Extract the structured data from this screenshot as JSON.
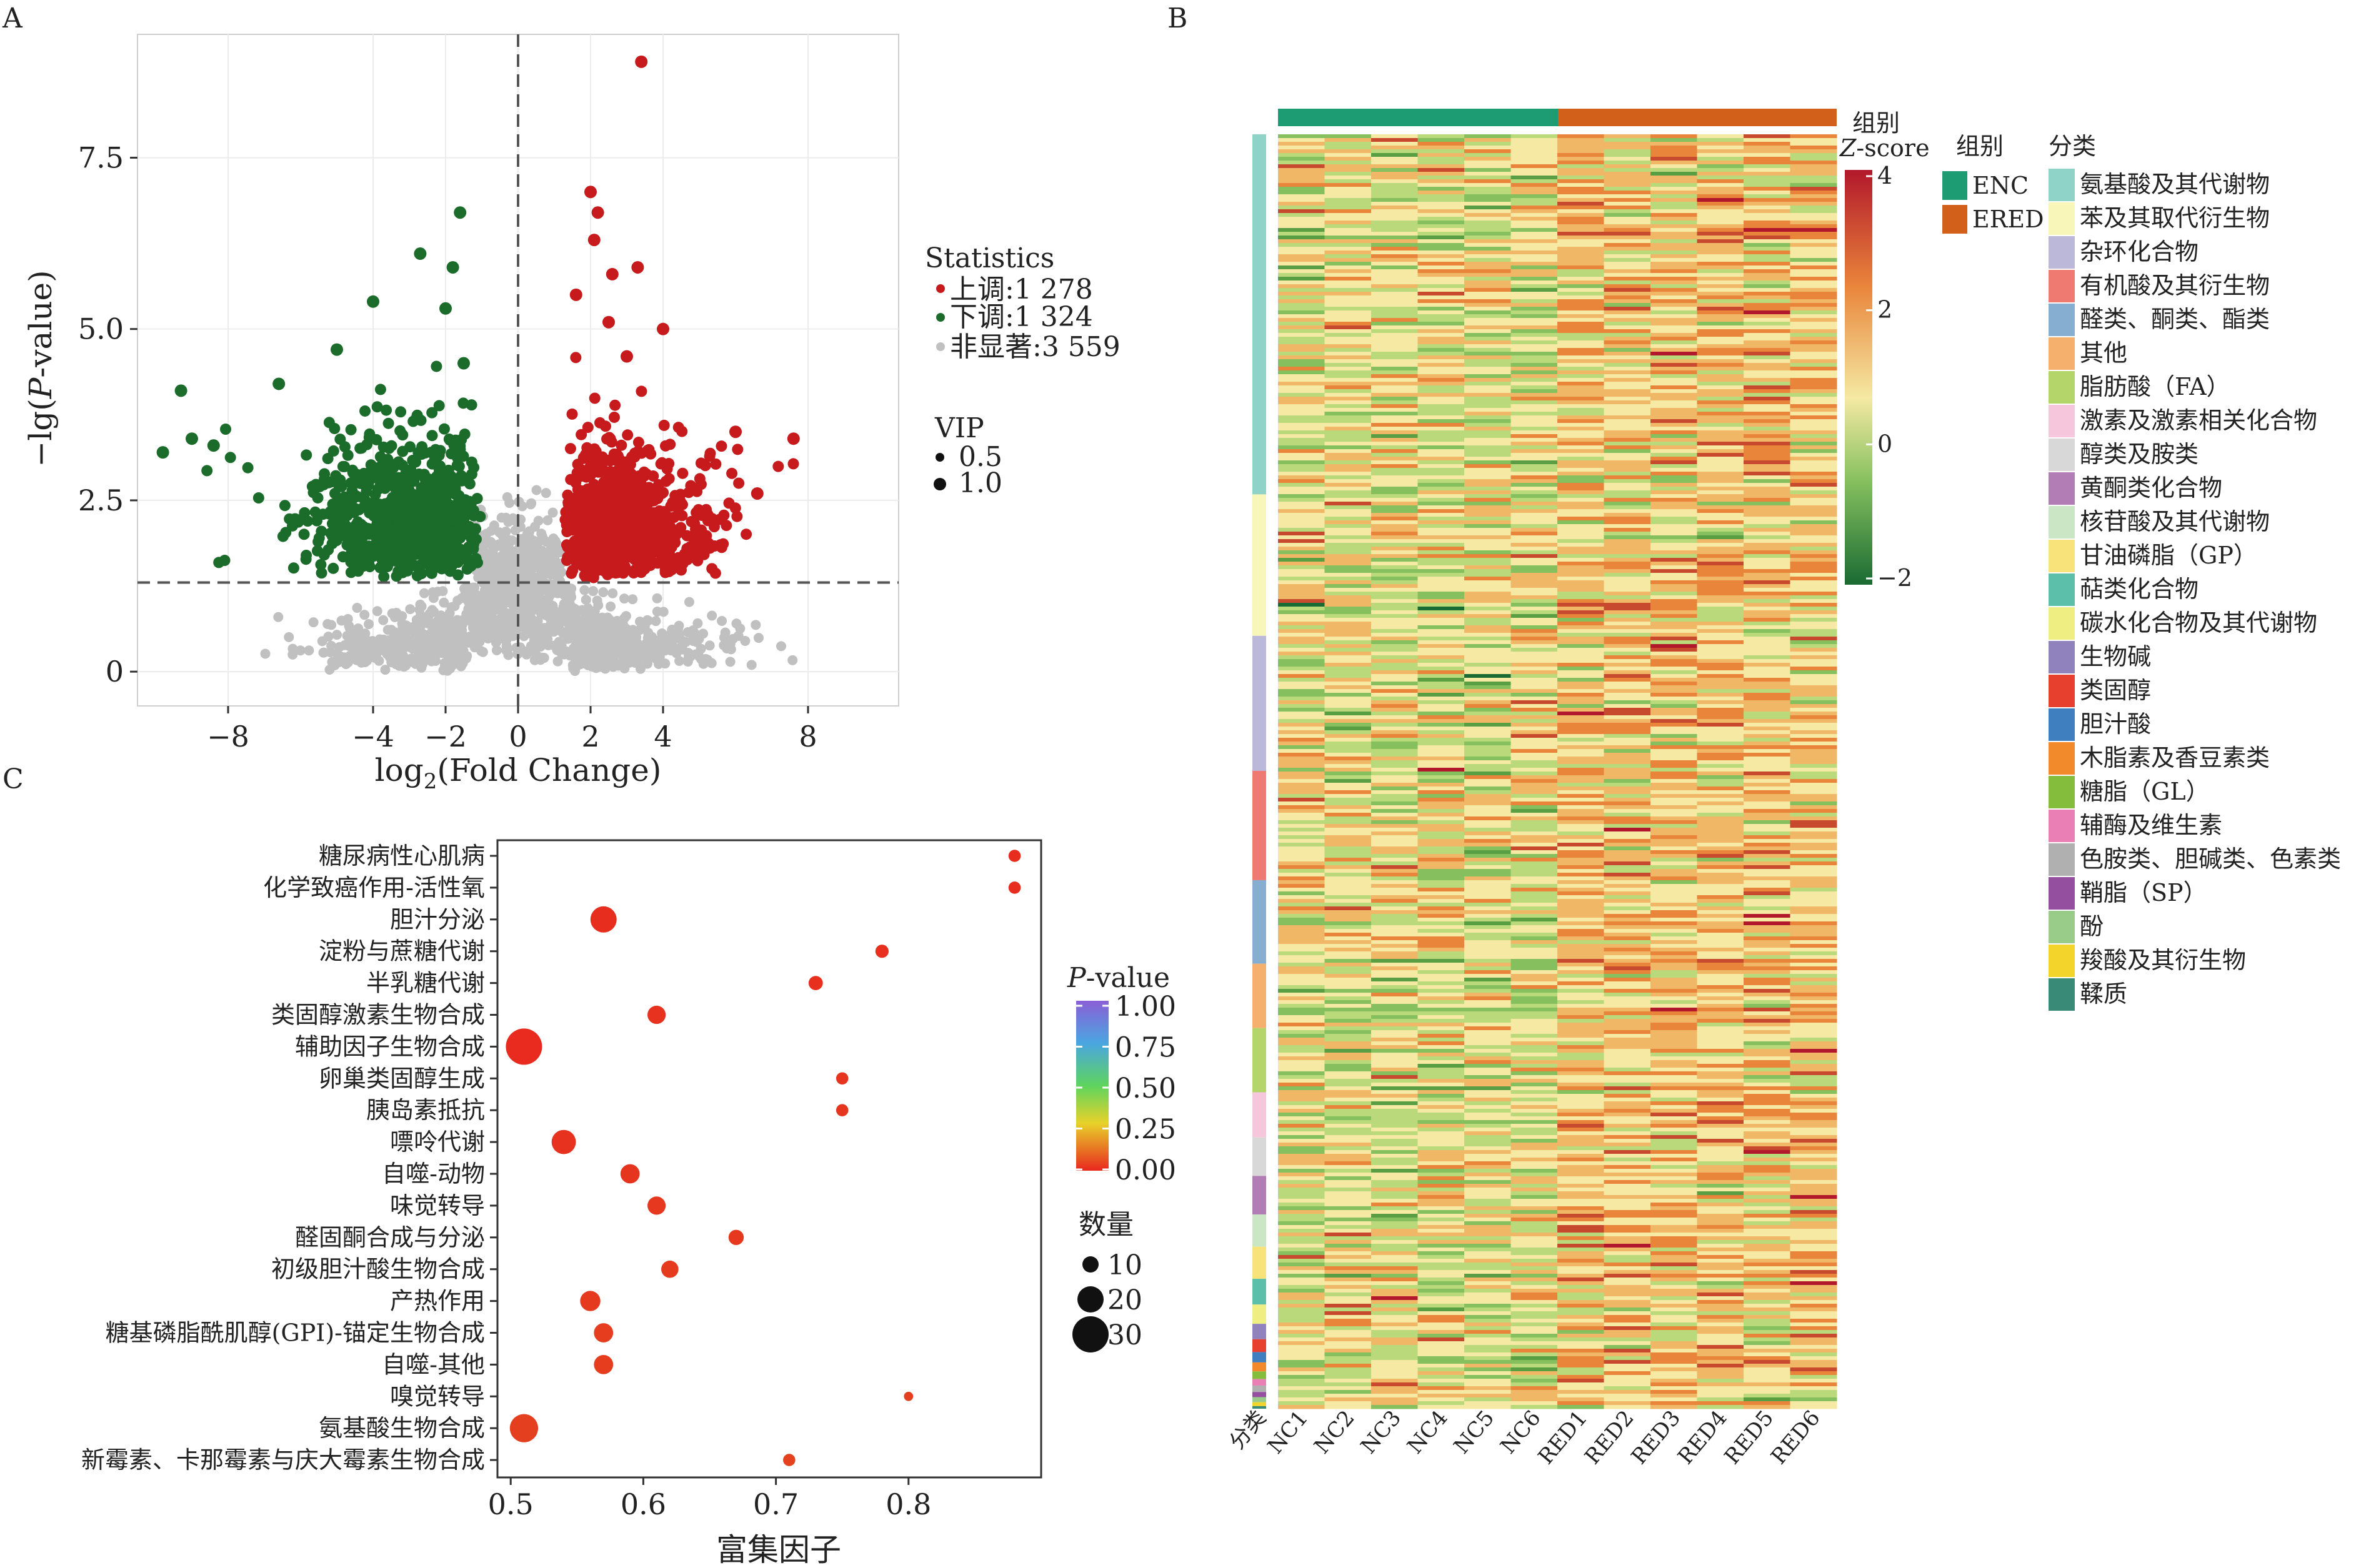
{
  "panel_labels": {
    "a": "A",
    "b": "B",
    "c": "C"
  },
  "chart_data": [
    {
      "type": "scatter",
      "panel": "A",
      "xlabel": "log₂(Fold Change)",
      "ylabel": "−lg(P-value)",
      "xlim": [
        -10.5,
        10.5
      ],
      "ylim": [
        -0.5,
        9.3
      ],
      "x_ticks": [
        "−8",
        "−4",
        "−2",
        "0",
        "2",
        "4",
        "8"
      ],
      "x_tick_values": [
        -8,
        -4,
        -2,
        0,
        2,
        4,
        8
      ],
      "y_ticks": [
        "0",
        "2.5",
        "5.0",
        "7.5"
      ],
      "y_tick_values": [
        0,
        2.5,
        5.0,
        7.5
      ],
      "threshold_y": 1.3,
      "threshold_x": 0,
      "grid": true,
      "legend": {
        "title": "Statistics",
        "items": [
          {
            "label": "上调:1 278",
            "color": "#c61a1d"
          },
          {
            "label": "下调:1 324",
            "color": "#1b6b2a"
          },
          {
            "label": "非显著:3 559",
            "color": "#c0c0c0"
          }
        ],
        "size_title": "VIP",
        "size_items": [
          "0.5",
          "1.0"
        ]
      },
      "series": [
        {
          "name": "上调",
          "color": "#c61a1d",
          "count": 1278,
          "highlighted_points": [
            [
              3.4,
              8.9
            ],
            [
              2.0,
              7.0
            ],
            [
              2.2,
              6.7
            ],
            [
              2.1,
              6.3
            ],
            [
              3.3,
              5.9
            ],
            [
              2.6,
              5.8
            ],
            [
              1.6,
              5.5
            ],
            [
              4.0,
              5.0
            ],
            [
              2.5,
              5.1
            ],
            [
              3.0,
              4.6
            ],
            [
              6.0,
              3.5
            ],
            [
              7.6,
              3.4
            ],
            [
              6.6,
              2.6
            ]
          ]
        },
        {
          "name": "下调",
          "color": "#1b6b2a",
          "count": 1324,
          "highlighted_points": [
            [
              -1.6,
              6.7
            ],
            [
              -2.7,
              6.1
            ],
            [
              -1.8,
              5.9
            ],
            [
              -4.0,
              5.4
            ],
            [
              -2.0,
              5.3
            ],
            [
              -9.3,
              4.1
            ],
            [
              -6.6,
              4.2
            ],
            [
              -9.0,
              3.4
            ],
            [
              -9.8,
              3.2
            ],
            [
              -8.4,
              3.3
            ],
            [
              -1.5,
              4.5
            ],
            [
              -5.0,
              4.7
            ]
          ]
        },
        {
          "name": "非显著",
          "color": "#c0c0c0",
          "count": 3559
        }
      ]
    },
    {
      "type": "heatmap",
      "panel": "B",
      "columns": [
        "分类",
        "NC1",
        "NC2",
        "NC3",
        "NC4",
        "NC5",
        "NC6",
        "RED1",
        "RED2",
        "RED3",
        "RED4",
        "RED5",
        "RED6"
      ],
      "group_bar_label": "组别",
      "colorbar": {
        "title": "Z-score",
        "ticks": [
          "4",
          "2",
          "0",
          "−2"
        ],
        "tick_values": [
          4,
          2,
          0,
          -2
        ],
        "colors": [
          "#b2182b",
          "#e9853b",
          "#f5e9a3",
          "#86c05e",
          "#1a6b33"
        ]
      },
      "groups": {
        "title": "组别",
        "items": [
          {
            "label": "ENC",
            "color": "#1d9b73"
          },
          {
            "label": "ERED",
            "color": "#d2601a"
          }
        ]
      },
      "categories": {
        "title": "分类",
        "items": [
          {
            "label": "氨基酸及其代谢物",
            "color": "#8fd3c8",
            "share": 0.28
          },
          {
            "label": "苯及其取代衍生物",
            "color": "#f8f6b8",
            "share": 0.11
          },
          {
            "label": "杂环化合物",
            "color": "#bcb8d9",
            "share": 0.105
          },
          {
            "label": "有机酸及其衍生物",
            "color": "#ee7a72",
            "share": 0.085
          },
          {
            "label": "醛类、酮类、酯类",
            "color": "#86aed1",
            "share": 0.065
          },
          {
            "label": "其他",
            "color": "#f4b06c",
            "share": 0.05
          },
          {
            "label": "脂肪酸（FA）",
            "color": "#b3d56a",
            "share": 0.05
          },
          {
            "label": "激素及激素相关化合物",
            "color": "#f6c6dc",
            "share": 0.035
          },
          {
            "label": "醇类及胺类",
            "color": "#d8d8d8",
            "share": 0.03
          },
          {
            "label": "黄酮类化合物",
            "color": "#b27cb4",
            "share": 0.03
          },
          {
            "label": "核苷酸及其代谢物",
            "color": "#cbe6c4",
            "share": 0.025
          },
          {
            "label": "甘油磷脂（GP）",
            "color": "#f8e27a",
            "share": 0.025
          },
          {
            "label": "萜类化合物",
            "color": "#5cbfa9",
            "share": 0.02
          },
          {
            "label": "碳水化合物及其代谢物",
            "color": "#eeee82",
            "share": 0.015
          },
          {
            "label": "生物碱",
            "color": "#8f82bd",
            "share": 0.012
          },
          {
            "label": "类固醇",
            "color": "#e8402e",
            "share": 0.01
          },
          {
            "label": "胆汁酸",
            "color": "#3f7fbf",
            "share": 0.008
          },
          {
            "label": "木脂素及香豆素类",
            "color": "#f28a2b",
            "share": 0.007
          },
          {
            "label": "糖脂（GL）",
            "color": "#84bd3c",
            "share": 0.006
          },
          {
            "label": "辅酶及维生素",
            "color": "#ea7fb6",
            "share": 0.005
          },
          {
            "label": "色胺类、胆碱类、色素类",
            "color": "#b0b0b0",
            "share": 0.005
          },
          {
            "label": "鞘脂（SP）",
            "color": "#944f9e",
            "share": 0.004
          },
          {
            "label": "酚",
            "color": "#99cc88",
            "share": 0.004
          },
          {
            "label": "羧酸及其衍生物",
            "color": "#f2d42a",
            "share": 0.003
          },
          {
            "label": "鞣质",
            "color": "#3a8a78",
            "share": 0.002
          }
        ]
      }
    },
    {
      "type": "scatter",
      "panel": "C",
      "xlabel": "富集因子",
      "xlim": [
        0.49,
        0.9
      ],
      "x_ticks": [
        "0.5",
        "0.6",
        "0.7",
        "0.8"
      ],
      "x_tick_values": [
        0.5,
        0.6,
        0.7,
        0.8
      ],
      "colorbar": {
        "title": "P-value",
        "ticks": [
          "1.00",
          "0.75",
          "0.50",
          "0.25",
          "0.00"
        ],
        "tick_values": [
          1.0,
          0.75,
          0.5,
          0.25,
          0.0
        ]
      },
      "size_legend": {
        "title": "数量",
        "items": [
          "10",
          "20",
          "30"
        ],
        "item_values": [
          10,
          20,
          30
        ]
      },
      "pathways": [
        {
          "name": "糖尿病性心肌病",
          "x": 0.88,
          "count": 6,
          "p": 0.02
        },
        {
          "name": "化学致癌作用-活性氧",
          "x": 0.88,
          "count": 6,
          "p": 0.02
        },
        {
          "name": "胆汁分泌",
          "x": 0.57,
          "count": 20,
          "p": 0.02
        },
        {
          "name": "淀粉与蔗糖代谢",
          "x": 0.78,
          "count": 7,
          "p": 0.03
        },
        {
          "name": "半乳糖代谢",
          "x": 0.73,
          "count": 8,
          "p": 0.03
        },
        {
          "name": "类固醇激素生物合成",
          "x": 0.61,
          "count": 12,
          "p": 0.04
        },
        {
          "name": "辅助因子生物合成",
          "x": 0.51,
          "count": 30,
          "p": 0.01
        },
        {
          "name": "卵巢类固醇生成",
          "x": 0.75,
          "count": 6,
          "p": 0.05
        },
        {
          "name": "胰岛素抵抗",
          "x": 0.75,
          "count": 6,
          "p": 0.05
        },
        {
          "name": "嘌呤代谢",
          "x": 0.54,
          "count": 18,
          "p": 0.04
        },
        {
          "name": "自噬-动物",
          "x": 0.59,
          "count": 13,
          "p": 0.05
        },
        {
          "name": "味觉转导",
          "x": 0.61,
          "count": 12,
          "p": 0.06
        },
        {
          "name": "醛固酮合成与分泌",
          "x": 0.67,
          "count": 9,
          "p": 0.06
        },
        {
          "name": "初级胆汁酸生物合成",
          "x": 0.62,
          "count": 11,
          "p": 0.07
        },
        {
          "name": "产热作用",
          "x": 0.56,
          "count": 14,
          "p": 0.07
        },
        {
          "name": "糖基磷脂酰肌醇(GPI)-锚定生物合成",
          "x": 0.57,
          "count": 13,
          "p": 0.08
        },
        {
          "name": "自噬-其他",
          "x": 0.57,
          "count": 13,
          "p": 0.08
        },
        {
          "name": "嗅觉转导",
          "x": 0.8,
          "count": 3,
          "p": 0.09
        },
        {
          "name": "氨基酸生物合成",
          "x": 0.51,
          "count": 22,
          "p": 0.09
        },
        {
          "name": "新霉素、卡那霉素与庆大霉素生物合成",
          "x": 0.71,
          "count": 6,
          "p": 0.1
        }
      ]
    }
  ]
}
